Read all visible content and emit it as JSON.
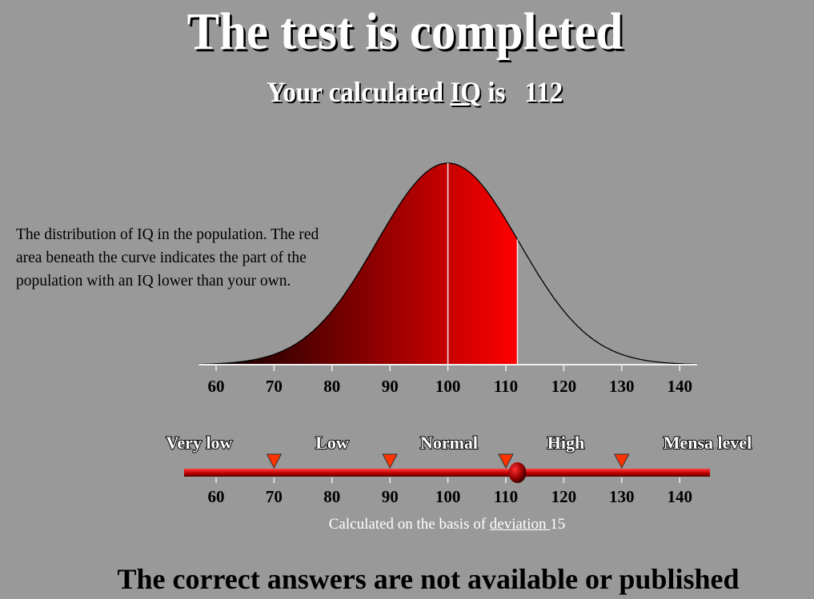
{
  "header": {
    "title": "The test is completed",
    "subtitle_prefix": "Your calculated ",
    "subtitle_link": "IQ",
    "subtitle_suffix": " is",
    "iq_value": "112"
  },
  "description": "The distribution of IQ in the population. The red area beneath the curve indicates the part of the population with an IQ lower than your own.",
  "chart_data": {
    "type": "area",
    "title": "",
    "distribution": "normal",
    "mean": 100,
    "shaded_below": 112,
    "xlim": [
      57,
      143
    ],
    "x_ticks": [
      "60",
      "70",
      "80",
      "90",
      "100",
      "110",
      "120",
      "130",
      "140"
    ],
    "colors": {
      "fill_start": "#000000",
      "fill_end": "#ff0000",
      "curve": "#000000"
    }
  },
  "scale": {
    "bands": [
      "Very low",
      "Low",
      "Normal",
      "High",
      "Mensa level"
    ],
    "thresholds": [
      70,
      90,
      110,
      130
    ],
    "ticks": [
      "60",
      "70",
      "80",
      "90",
      "100",
      "110",
      "120",
      "130",
      "140"
    ],
    "value": 112,
    "colors": {
      "bar": "#dd0000",
      "marker": "#ff3300",
      "knob": "#aa0000"
    }
  },
  "note": {
    "prefix": "Calculated on the basis of ",
    "link": "deviation ",
    "suffix": "15"
  },
  "footer": "The correct answers are not available or published"
}
